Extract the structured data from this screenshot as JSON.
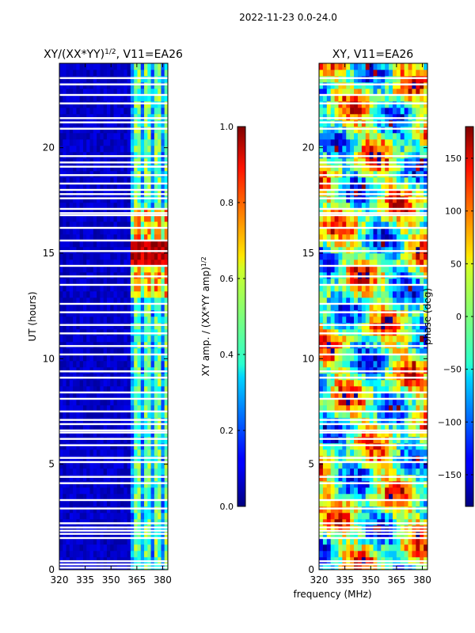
{
  "figure_title": "2022-11-23 0.0-24.0",
  "shared_xlabel": "frequency (MHz)",
  "chart_data": [
    {
      "type": "heatmap",
      "title_main": "XY/(XX*YY)",
      "title_sup": "1/2",
      "title_tail": ", V11=EA26",
      "ylabel": "UT (hours)",
      "xlim": [
        320,
        383
      ],
      "ylim": [
        0,
        24
      ],
      "xticks": [
        320,
        335,
        350,
        365,
        380
      ],
      "yticks": [
        0,
        5,
        10,
        15,
        20
      ],
      "colorbar": {
        "label_main": "XY amp. / (XX*YY amp)",
        "label_sup": "1/2",
        "range": [
          0.0,
          1.0
        ],
        "ticks": [
          "0.0",
          "0.2",
          "0.4",
          "0.6",
          "0.8",
          "1.0"
        ],
        "tick_values": [
          0.0,
          0.2,
          0.4,
          0.6,
          0.8,
          1.0
        ]
      },
      "high_amplitude_band_mhz": [
        361,
        383
      ],
      "peak_hours": [
        14.5,
        15.5
      ],
      "flagged_hours": [
        0.1,
        0.25,
        0.4,
        1.5,
        1.7,
        1.85,
        2.0,
        2.2,
        2.9,
        3.3,
        4.1,
        4.4,
        5.1,
        5.3,
        5.9,
        6.2,
        6.5,
        6.6,
        6.9,
        7.1,
        7.5,
        8.1,
        8.4,
        9.1,
        9.4,
        10.2,
        10.6,
        11.2,
        11.6,
        12.2,
        12.6,
        13.5,
        13.9,
        14.4,
        15.1,
        15.6,
        16.2,
        16.8,
        16.9,
        17.1,
        17.6,
        17.8,
        18.0,
        18.3,
        18.7,
        19.1,
        19.3,
        19.6,
        20.9,
        21.2,
        21.4,
        22.1,
        22.5,
        23.0,
        23.3
      ]
    },
    {
      "type": "heatmap",
      "title": "XY, V11=EA26",
      "xlim": [
        320,
        383
      ],
      "ylim": [
        0,
        24
      ],
      "xticks": [
        320,
        335,
        350,
        365,
        380
      ],
      "yticks": [
        0,
        5,
        10,
        15,
        20
      ],
      "colorbar": {
        "label": "phase (deg)",
        "range": [
          -180,
          180
        ],
        "ticks": [
          "−150",
          "−100",
          "−50",
          "0",
          "50",
          "100",
          "150"
        ],
        "tick_values": [
          -150,
          -100,
          -50,
          0,
          50,
          100,
          150
        ]
      },
      "flagged_hours": [
        0.1,
        0.25,
        0.4,
        1.5,
        1.7,
        1.85,
        2.0,
        2.2,
        2.9,
        3.3,
        4.1,
        4.4,
        5.1,
        5.3,
        5.9,
        6.2,
        6.5,
        6.6,
        6.9,
        7.1,
        7.5,
        8.1,
        8.4,
        9.1,
        9.4,
        10.2,
        10.6,
        11.2,
        11.6,
        12.2,
        12.6,
        13.5,
        13.9,
        14.4,
        15.1,
        15.6,
        16.2,
        16.8,
        16.9,
        17.1,
        17.6,
        17.8,
        18.0,
        18.3,
        18.7,
        19.1,
        19.3,
        19.6,
        20.9,
        21.2,
        21.4,
        22.1,
        22.5,
        23.0,
        23.3
      ]
    }
  ]
}
